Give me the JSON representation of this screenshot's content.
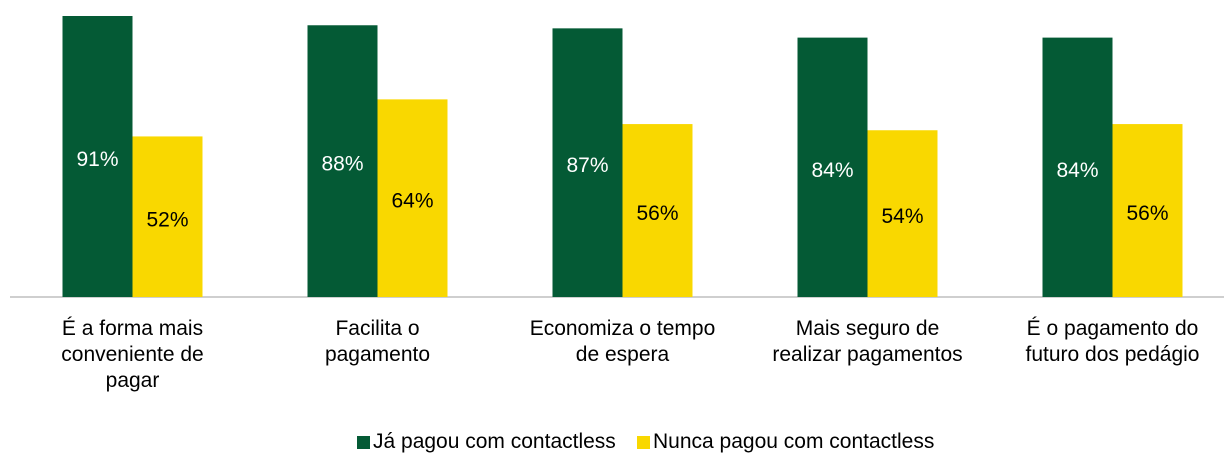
{
  "chart_data": {
    "type": "bar",
    "categories": [
      "É a forma mais\nconveniente de\npagar",
      "Facilita o\npagamento",
      "Economiza o tempo\nde espera",
      "Mais seguro de\nrealizar pagamentos",
      "É o pagamento do\nfuturo dos pedágio"
    ],
    "series": [
      {
        "name": "Já pagou com contactless",
        "color": "#045a35",
        "values": [
          91,
          88,
          87,
          84,
          84
        ],
        "value_labels": [
          "91%",
          "88%",
          "87%",
          "84%",
          "84%"
        ]
      },
      {
        "name": "Nunca pagou com contactless",
        "color": "#f9d800",
        "values": [
          52,
          64,
          56,
          54,
          56
        ],
        "value_labels": [
          "52%",
          "64%",
          "56%",
          "54%",
          "56%"
        ]
      }
    ],
    "legend": "bottom"
  }
}
